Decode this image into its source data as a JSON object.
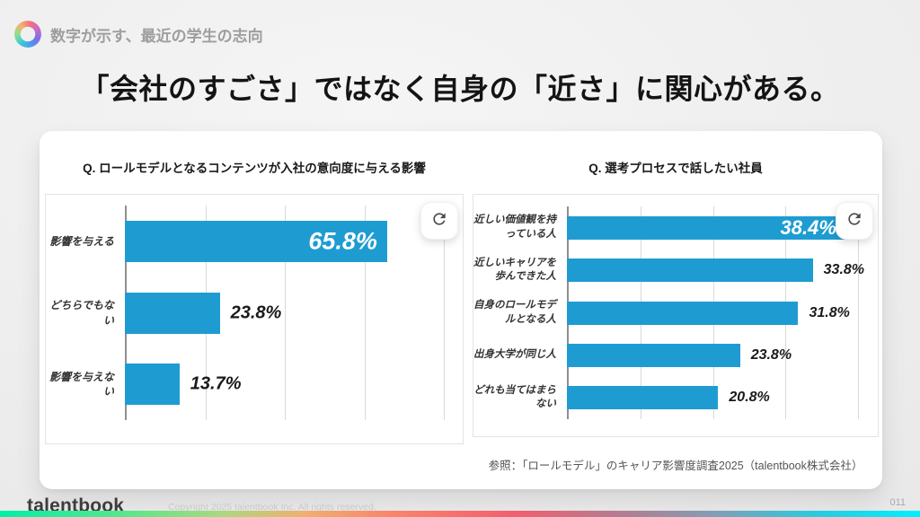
{
  "header": {
    "label": "数字が示す、最近の学生の志向",
    "logo_icon": "talentbook-ring-icon"
  },
  "page_title": "「会社のすごさ」ではなく自身の「近さ」に関心がある。",
  "chart_data": [
    {
      "type": "bar",
      "orientation": "horizontal",
      "title": "Q. ロールモデルとなるコンテンツが入社の意向度に与える影響",
      "categories": [
        "影響を与える",
        "どちらでもない",
        "影響を与えない"
      ],
      "categories_lines": [
        [
          "影響を与える"
        ],
        [
          "どちらでもない"
        ],
        [
          "影響を与えない"
        ]
      ],
      "values": [
        65.8,
        23.8,
        13.7
      ],
      "value_labels": [
        "65.8%",
        "23.8%",
        "13.7%"
      ],
      "label_position": [
        "inside",
        "outside",
        "outside"
      ],
      "xlim": [
        0,
        82.5
      ],
      "gridline_step": 20,
      "grid": true,
      "legend": "none",
      "bar_color": "#1E9CD2"
    },
    {
      "type": "bar",
      "orientation": "horizontal",
      "title": "Q. 選考プロセスで話したい社員",
      "categories": [
        "近しい価値観を持っている人",
        "近しいキャリアを歩んできた人",
        "自身のロールモデルとなる人",
        "出身大学が同じ人",
        "どれも当てはまらない"
      ],
      "categories_lines": [
        [
          "近しい価値観を持",
          "っている人"
        ],
        [
          "近しいキャリアを",
          "歩んできた人"
        ],
        [
          "自身のロールモデ",
          "ルとなる人"
        ],
        [
          "出身大学が同じ人"
        ],
        [
          "どれも当てはまら",
          "ない"
        ]
      ],
      "values": [
        38.4,
        33.8,
        31.8,
        23.8,
        20.8
      ],
      "value_labels": [
        "38.4%",
        "33.8%",
        "31.8%",
        "23.8%",
        "20.8%"
      ],
      "label_position": [
        "inside",
        "outside",
        "outside",
        "outside",
        "outside"
      ],
      "xlim": [
        0,
        41.5
      ],
      "gridline_step": 10,
      "grid": true,
      "legend": "none",
      "bar_color": "#1E9CD2"
    }
  ],
  "source_note": "参照：「ロールモデル」のキャリア影響度調査2025（talentbook株式会社）",
  "footer": {
    "brand": "talentbook",
    "copyright": "Copyright 2025 talentbook Inc. All rights reserved.",
    "page_number": "011"
  },
  "colors": {
    "bar_blue": "#1E9CD2",
    "card_bg": "#FFFFFF",
    "page_bg": "#ECECEC",
    "rainbow_strip": [
      "#00F0A8",
      "#4DE88C",
      "#A9D97E",
      "#EFB070",
      "#F9836B",
      "#F25F6F",
      "#B07E92",
      "#7FA0B8",
      "#27CCE0",
      "#00F0FF"
    ]
  }
}
